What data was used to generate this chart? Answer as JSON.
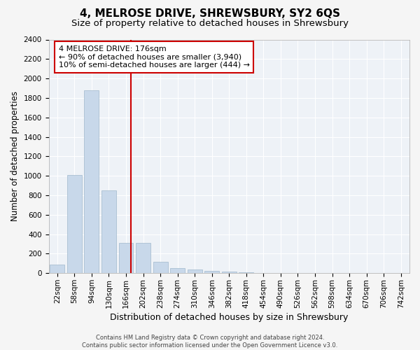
{
  "title": "4, MELROSE DRIVE, SHREWSBURY, SY2 6QS",
  "subtitle": "Size of property relative to detached houses in Shrewsbury",
  "xlabel": "Distribution of detached houses by size in Shrewsbury",
  "ylabel": "Number of detached properties",
  "footer_line1": "Contains HM Land Registry data © Crown copyright and database right 2024.",
  "footer_line2": "Contains public sector information licensed under the Open Government Licence v3.0.",
  "annotation_line1": "4 MELROSE DRIVE: 176sqm",
  "annotation_line2": "← 90% of detached houses are smaller (3,940)",
  "annotation_line3": "10% of semi-detached houses are larger (444) →",
  "bar_color": "#c8d8ea",
  "bar_edgecolor": "#a0b8cc",
  "vline_color": "#cc0000",
  "vline_x": 4.27,
  "categories": [
    "22sqm",
    "58sqm",
    "94sqm",
    "130sqm",
    "166sqm",
    "202sqm",
    "238sqm",
    "274sqm",
    "310sqm",
    "346sqm",
    "382sqm",
    "418sqm",
    "454sqm",
    "490sqm",
    "526sqm",
    "562sqm",
    "598sqm",
    "634sqm",
    "670sqm",
    "706sqm",
    "742sqm"
  ],
  "values": [
    90,
    1010,
    1880,
    850,
    310,
    310,
    115,
    50,
    35,
    25,
    15,
    10,
    5,
    2,
    1,
    1,
    0,
    0,
    0,
    0,
    0
  ],
  "ylim": [
    0,
    2400
  ],
  "yticks": [
    0,
    200,
    400,
    600,
    800,
    1000,
    1200,
    1400,
    1600,
    1800,
    2000,
    2200,
    2400
  ],
  "title_fontsize": 11,
  "subtitle_fontsize": 9.5,
  "tick_fontsize": 7.5,
  "ylabel_fontsize": 8.5,
  "xlabel_fontsize": 9,
  "annotation_fontsize": 8,
  "footer_fontsize": 6,
  "bg_color": "#eef2f7",
  "grid_color": "#ffffff",
  "fig_bg_color": "#f5f5f5"
}
